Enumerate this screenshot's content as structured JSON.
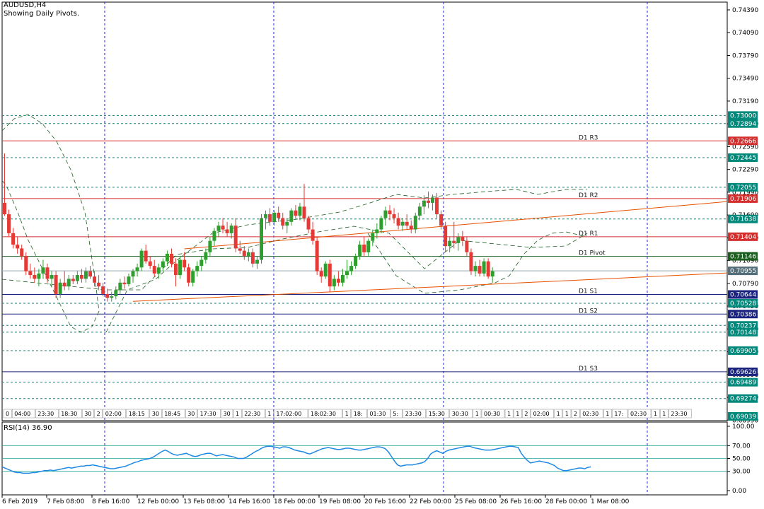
{
  "header": {
    "symbol": "AUDUSD,H4",
    "subtitle": "Showing Daily Pivots."
  },
  "rsi": {
    "label": "RSI(14) 36.90",
    "scale_ticks": [
      "100.00",
      "70.00",
      "50.00",
      "30.00",
      "0.00"
    ],
    "levels": [
      70,
      50,
      30
    ],
    "values": [
      37,
      35,
      33,
      31,
      29,
      28,
      28,
      27,
      27,
      27,
      28,
      28,
      29,
      30,
      31,
      31,
      32,
      31,
      32,
      33,
      34,
      35,
      36,
      35,
      36,
      37,
      38,
      38,
      39,
      39,
      40,
      39,
      38,
      37,
      36,
      35,
      34,
      34,
      35,
      36,
      37,
      38,
      40,
      42,
      44,
      45,
      47,
      48,
      49,
      50,
      52,
      55,
      58,
      61,
      63,
      61,
      58,
      56,
      55,
      56,
      57,
      58,
      56,
      54,
      53,
      54,
      56,
      57,
      58,
      58,
      56,
      54,
      55,
      56,
      55,
      54,
      53,
      52,
      50,
      50,
      50,
      52,
      55,
      58,
      61,
      63,
      66,
      68,
      69,
      69,
      68,
      67,
      66,
      68,
      68,
      67,
      65,
      63,
      62,
      61,
      60,
      58,
      57,
      59,
      61,
      63,
      65,
      66,
      67,
      66,
      65,
      64,
      64,
      65,
      66,
      66,
      65,
      64,
      63,
      63,
      64,
      65,
      66,
      67,
      68,
      68,
      67,
      65,
      60,
      53,
      46,
      40,
      38,
      39,
      40,
      40,
      40,
      41,
      42,
      43,
      45,
      50,
      57,
      60,
      62,
      60,
      58,
      61,
      63,
      64,
      65,
      66,
      67,
      68,
      69,
      69,
      67,
      66,
      65,
      64,
      63,
      63,
      63,
      64,
      65,
      66,
      67,
      68,
      69,
      69,
      68,
      67,
      58,
      52,
      47,
      43,
      44,
      45,
      46,
      45,
      44,
      43,
      41,
      39,
      35,
      33,
      31,
      31,
      32,
      33,
      34,
      35,
      35,
      34,
      36,
      37
    ]
  },
  "x_axis": {
    "labels": [
      "6 Feb 2019",
      "7 Feb 08:00",
      "8 Feb 16:00",
      "12 Feb 00:00",
      "13 Feb 08:00",
      "14 Feb 16:00",
      "18 Feb 00:00",
      "19 Feb 08:00",
      "20 Feb 16:00",
      "22 Feb 00:00",
      "25 Feb 08:00",
      "26 Feb 16:00",
      "28 Feb 00:00",
      "1 Mar 08:00"
    ]
  },
  "session_bar": {
    "items": [
      "0",
      "04:00",
      "23:30",
      "18:30",
      "30",
      "2",
      "02:00",
      "18:15",
      "30",
      "18:45",
      "30",
      "17:30",
      "30",
      "1",
      "22:30",
      "1",
      "17:02:00",
      "18:02:30",
      "1",
      "18:",
      "01:30",
      "5:",
      "23:30",
      "15:30",
      "30:30",
      "1",
      "00:30",
      "1",
      "1",
      "2",
      "02:00",
      "1",
      "1",
      "2",
      "02:30",
      "1",
      "17:",
      "02:30",
      "1",
      "1",
      "23:30"
    ]
  },
  "chart_data": {
    "type": "candlestick",
    "symbol": "AUDUSD",
    "timeframe": "H4",
    "price_axis_ticks": [
      0.7439,
      0.7409,
      0.7379,
      0.7349,
      0.7319,
      0.7289,
      0.7259,
      0.7229,
      0.7199,
      0.7169,
      0.7139,
      0.7109,
      0.7079,
      0.7049,
      0.7019,
      0.6989,
      0.6959,
      0.6929,
      0.6899
    ],
    "ylim": [
      0.69039,
      0.7439
    ],
    "price_labels": [
      {
        "value": 0.73,
        "text": "0.73000",
        "color": "#00897b"
      },
      {
        "value": 0.72894,
        "text": "0.72894",
        "color": "#00897b"
      },
      {
        "value": 0.72666,
        "text": "0.72666",
        "color": "#d32f2f"
      },
      {
        "value": 0.72445,
        "text": "0.72445",
        "color": "#00897b"
      },
      {
        "value": 0.72055,
        "text": "0.72055",
        "color": "#00897b"
      },
      {
        "value": 0.71906,
        "text": "0.71906",
        "color": "#d32f2f"
      },
      {
        "value": 0.71638,
        "text": "0.71638",
        "color": "#00897b"
      },
      {
        "value": 0.71404,
        "text": "0.71404",
        "color": "#d32f2f"
      },
      {
        "value": 0.71146,
        "text": "0.71146",
        "color": "#1b5e20"
      },
      {
        "value": 0.70955,
        "text": "0.70955",
        "color": "#546e7a"
      },
      {
        "value": 0.70644,
        "text": "0.70644",
        "color": "#1a237e"
      },
      {
        "value": 0.70528,
        "text": "0.70528",
        "color": "#00897b"
      },
      {
        "value": 0.70386,
        "text": "0.70386",
        "color": "#1a237e"
      },
      {
        "value": 0.70237,
        "text": "0.70237",
        "color": "#00897b"
      },
      {
        "value": 0.70148,
        "text": "0.70148",
        "color": "#00897b"
      },
      {
        "value": 0.69905,
        "text": "0.69905",
        "color": "#00897b"
      },
      {
        "value": 0.69626,
        "text": "0.69626",
        "color": "#1a237e"
      },
      {
        "value": 0.69489,
        "text": "0.69489",
        "color": "#00897b"
      },
      {
        "value": 0.69274,
        "text": "0.69274",
        "color": "#00897b"
      },
      {
        "value": 0.69039,
        "text": "0.69039",
        "color": "#00897b"
      }
    ],
    "pivots": [
      {
        "name": "D1 R3",
        "value": 0.72666,
        "color": "#d32f2f"
      },
      {
        "name": "D1 R2",
        "value": 0.71906,
        "color": "#d32f2f"
      },
      {
        "name": "D1 R1",
        "value": 0.71404,
        "color": "#d32f2f"
      },
      {
        "name": "D1 Pivot",
        "value": 0.71146,
        "color": "#1b5e20"
      },
      {
        "name": "D1 S1",
        "value": 0.70644,
        "color": "#1a237e"
      },
      {
        "name": "D1 S2",
        "value": 0.70386,
        "color": "#1a237e"
      },
      {
        "name": "D1 S3",
        "value": 0.69626,
        "color": "#1a237e"
      }
    ],
    "level_lines": [
      0.73,
      0.72894,
      0.72445,
      0.72055,
      0.71638,
      0.70528,
      0.70237,
      0.70148,
      0.69905,
      0.69489,
      0.69274
    ],
    "last_price": 0.70955,
    "trendlines": [
      {
        "start": [
          42,
          0.71244
        ],
        "end": [
          131,
          0.71867
        ],
        "color": "#e65100"
      },
      {
        "start": [
          30,
          0.70554
        ],
        "end": [
          131,
          0.70927
        ],
        "color": "#e65100"
      }
    ],
    "candles": [
      [
        0.7185,
        0.725,
        0.7168,
        0.717
      ],
      [
        0.717,
        0.7176,
        0.714,
        0.7145
      ],
      [
        0.7145,
        0.7152,
        0.7125,
        0.713
      ],
      [
        0.713,
        0.714,
        0.7118,
        0.7125
      ],
      [
        0.7125,
        0.713,
        0.711,
        0.7115
      ],
      [
        0.7115,
        0.712,
        0.709,
        0.7095
      ],
      [
        0.7095,
        0.7105,
        0.7085,
        0.709
      ],
      [
        0.709,
        0.71,
        0.708,
        0.7085
      ],
      [
        0.7085,
        0.7098,
        0.7075,
        0.7092
      ],
      [
        0.7092,
        0.711,
        0.7085,
        0.71
      ],
      [
        0.71,
        0.7105,
        0.708,
        0.7085
      ],
      [
        0.7085,
        0.7095,
        0.7075,
        0.709
      ],
      [
        0.709,
        0.7095,
        0.706,
        0.7065
      ],
      [
        0.7065,
        0.7085,
        0.706,
        0.708
      ],
      [
        0.708,
        0.7095,
        0.707,
        0.7075
      ],
      [
        0.7075,
        0.709,
        0.707,
        0.7085
      ],
      [
        0.7085,
        0.709,
        0.7078,
        0.7082
      ],
      [
        0.7082,
        0.7095,
        0.7078,
        0.709
      ],
      [
        0.709,
        0.7098,
        0.708,
        0.7085
      ],
      [
        0.7085,
        0.71,
        0.708,
        0.7095
      ],
      [
        0.7095,
        0.7102,
        0.7085,
        0.7088
      ],
      [
        0.7088,
        0.7095,
        0.7075,
        0.708
      ],
      [
        0.708,
        0.709,
        0.707,
        0.7075
      ],
      [
        0.7075,
        0.708,
        0.7062,
        0.7065
      ],
      [
        0.7065,
        0.7072,
        0.7055,
        0.706
      ],
      [
        0.706,
        0.7068,
        0.7055,
        0.7062
      ],
      [
        0.7062,
        0.7075,
        0.7058,
        0.707
      ],
      [
        0.707,
        0.7085,
        0.7065,
        0.708
      ],
      [
        0.708,
        0.7088,
        0.7072,
        0.7078
      ],
      [
        0.7078,
        0.7092,
        0.7075,
        0.7088
      ],
      [
        0.7088,
        0.7098,
        0.708,
        0.7095
      ],
      [
        0.7095,
        0.7105,
        0.7088,
        0.71
      ],
      [
        0.71,
        0.7125,
        0.7095,
        0.7122
      ],
      [
        0.7122,
        0.713,
        0.7105,
        0.7108
      ],
      [
        0.7108,
        0.7115,
        0.7098,
        0.7102
      ],
      [
        0.7102,
        0.711,
        0.7088,
        0.7092
      ],
      [
        0.7092,
        0.7105,
        0.7085,
        0.71
      ],
      [
        0.71,
        0.7112,
        0.7095,
        0.7108
      ],
      [
        0.7108,
        0.7122,
        0.7102,
        0.7118
      ],
      [
        0.7118,
        0.7125,
        0.71,
        0.7105
      ],
      [
        0.7105,
        0.7112,
        0.7075,
        0.709
      ],
      [
        0.709,
        0.7115,
        0.7085,
        0.711
      ],
      [
        0.711,
        0.712,
        0.7095,
        0.71
      ],
      [
        0.71,
        0.7105,
        0.7075,
        0.708
      ],
      [
        0.708,
        0.7098,
        0.7075,
        0.7095
      ],
      [
        0.7095,
        0.7108,
        0.7088,
        0.7102
      ],
      [
        0.7102,
        0.7115,
        0.7095,
        0.711
      ],
      [
        0.711,
        0.7125,
        0.7105,
        0.712
      ],
      [
        0.712,
        0.714,
        0.7115,
        0.7135
      ],
      [
        0.7135,
        0.7152,
        0.7128,
        0.7148
      ],
      [
        0.7148,
        0.716,
        0.714,
        0.7155
      ],
      [
        0.7155,
        0.7165,
        0.7145,
        0.715
      ],
      [
        0.715,
        0.716,
        0.714,
        0.7145
      ],
      [
        0.7145,
        0.7158,
        0.7138,
        0.7155
      ],
      [
        0.7155,
        0.7165,
        0.712,
        0.7125
      ],
      [
        0.7125,
        0.7135,
        0.7118,
        0.7122
      ],
      [
        0.7122,
        0.7128,
        0.711,
        0.7115
      ],
      [
        0.7115,
        0.7125,
        0.7108,
        0.712
      ],
      [
        0.712,
        0.7125,
        0.71,
        0.7105
      ],
      [
        0.7105,
        0.7115,
        0.7098,
        0.711
      ],
      [
        0.711,
        0.717,
        0.7105,
        0.7165
      ],
      [
        0.7165,
        0.7175,
        0.715,
        0.717
      ],
      [
        0.717,
        0.7178,
        0.7155,
        0.716
      ],
      [
        0.716,
        0.7175,
        0.7155,
        0.7172
      ],
      [
        0.7172,
        0.718,
        0.716,
        0.7165
      ],
      [
        0.7165,
        0.7172,
        0.715,
        0.7155
      ],
      [
        0.7155,
        0.7165,
        0.7145,
        0.716
      ],
      [
        0.716,
        0.7178,
        0.7155,
        0.7175
      ],
      [
        0.7175,
        0.7182,
        0.7165,
        0.7168
      ],
      [
        0.7168,
        0.7185,
        0.7162,
        0.718
      ],
      [
        0.718,
        0.721,
        0.716,
        0.7165
      ],
      [
        0.7165,
        0.7168,
        0.7145,
        0.715
      ],
      [
        0.715,
        0.716,
        0.713,
        0.7135
      ],
      [
        0.7135,
        0.714,
        0.709,
        0.7095
      ],
      [
        0.7095,
        0.71,
        0.708,
        0.7088
      ],
      [
        0.7088,
        0.7108,
        0.7085,
        0.7105
      ],
      [
        0.7105,
        0.711,
        0.7068,
        0.7075
      ],
      [
        0.7075,
        0.709,
        0.707,
        0.7085
      ],
      [
        0.7085,
        0.7095,
        0.7075,
        0.708
      ],
      [
        0.708,
        0.7098,
        0.7075,
        0.709
      ],
      [
        0.709,
        0.711,
        0.7085,
        0.7095
      ],
      [
        0.7095,
        0.7108,
        0.709,
        0.7102
      ],
      [
        0.7102,
        0.7118,
        0.7098,
        0.7115
      ],
      [
        0.7115,
        0.7135,
        0.711,
        0.713
      ],
      [
        0.713,
        0.714,
        0.7115,
        0.712
      ],
      [
        0.712,
        0.7138,
        0.7115,
        0.7135
      ],
      [
        0.7135,
        0.715,
        0.7128,
        0.7145
      ],
      [
        0.7145,
        0.7158,
        0.7138,
        0.715
      ],
      [
        0.715,
        0.7168,
        0.7145,
        0.7165
      ],
      [
        0.7165,
        0.718,
        0.7155,
        0.7175
      ],
      [
        0.7175,
        0.7182,
        0.7162,
        0.717
      ],
      [
        0.717,
        0.7178,
        0.7158,
        0.7165
      ],
      [
        0.7165,
        0.7172,
        0.715,
        0.7155
      ],
      [
        0.7155,
        0.7165,
        0.7148,
        0.716
      ],
      [
        0.716,
        0.717,
        0.715,
        0.7155
      ],
      [
        0.7155,
        0.7162,
        0.7145,
        0.715
      ],
      [
        0.715,
        0.7172,
        0.7145,
        0.7168
      ],
      [
        0.7168,
        0.7185,
        0.7162,
        0.718
      ],
      [
        0.718,
        0.7195,
        0.717,
        0.7188
      ],
      [
        0.7188,
        0.72,
        0.7178,
        0.7185
      ],
      [
        0.7185,
        0.7196,
        0.7175,
        0.7192
      ],
      [
        0.7192,
        0.7198,
        0.7165,
        0.717
      ],
      [
        0.717,
        0.7175,
        0.715,
        0.7155
      ],
      [
        0.7155,
        0.716,
        0.712,
        0.7128
      ],
      [
        0.7128,
        0.714,
        0.712,
        0.7135
      ],
      [
        0.7135,
        0.716,
        0.7125,
        0.7132
      ],
      [
        0.7132,
        0.7145,
        0.7122,
        0.714
      ],
      [
        0.714,
        0.7148,
        0.7128,
        0.7135
      ],
      [
        0.7135,
        0.714,
        0.7115,
        0.712
      ],
      [
        0.712,
        0.7125,
        0.709,
        0.7095
      ],
      [
        0.7095,
        0.7108,
        0.7088,
        0.7102
      ],
      [
        0.7102,
        0.711,
        0.7088,
        0.7092
      ],
      [
        0.7092,
        0.7112,
        0.7088,
        0.7108
      ],
      [
        0.7108,
        0.7112,
        0.7085,
        0.7088
      ],
      [
        0.7088,
        0.71,
        0.708,
        0.7095
      ]
    ]
  }
}
